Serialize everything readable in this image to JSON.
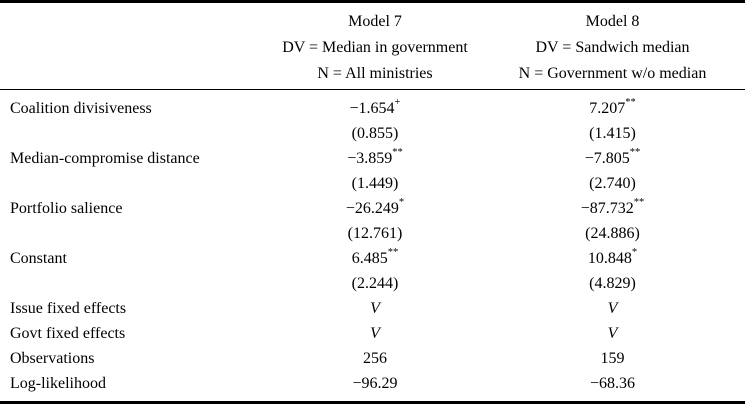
{
  "table": {
    "columns": [
      {
        "title": "Model 7",
        "dv": "DV = Median in government",
        "n": "N = All ministries"
      },
      {
        "title": "Model 8",
        "dv": "DV = Sandwich median",
        "n": "N = Government w/o median"
      }
    ],
    "rows": [
      {
        "label": "Coalition divisiveness",
        "type": "coef",
        "m7": {
          "est": "−1.654",
          "sig": "+",
          "se": "(0.855)"
        },
        "m8": {
          "est": "7.207",
          "sig": "**",
          "se": "(1.415)"
        }
      },
      {
        "label": "Median-compromise distance",
        "type": "coef",
        "m7": {
          "est": "−3.859",
          "sig": "**",
          "se": "(1.449)"
        },
        "m8": {
          "est": "−7.805",
          "sig": "**",
          "se": "(2.740)"
        }
      },
      {
        "label": "Portfolio salience",
        "type": "coef",
        "m7": {
          "est": "−26.249",
          "sig": "*",
          "se": "(12.761)"
        },
        "m8": {
          "est": "−87.732",
          "sig": "**",
          "se": "(24.886)"
        }
      },
      {
        "label": "Constant",
        "type": "coef",
        "m7": {
          "est": "6.485",
          "sig": "**",
          "se": "(2.244)"
        },
        "m8": {
          "est": "10.848",
          "sig": "*",
          "se": "(4.829)"
        }
      },
      {
        "label": "Issue fixed effects",
        "type": "flag",
        "m7": "V",
        "m8": "V"
      },
      {
        "label": "Govt fixed effects",
        "type": "flag",
        "m7": "V",
        "m8": "V"
      },
      {
        "label": "Observations",
        "type": "stat",
        "m7": "256",
        "m8": "159"
      },
      {
        "label": "Log-likelihood",
        "type": "stat",
        "m7": "−96.29",
        "m8": "−68.36"
      }
    ]
  }
}
